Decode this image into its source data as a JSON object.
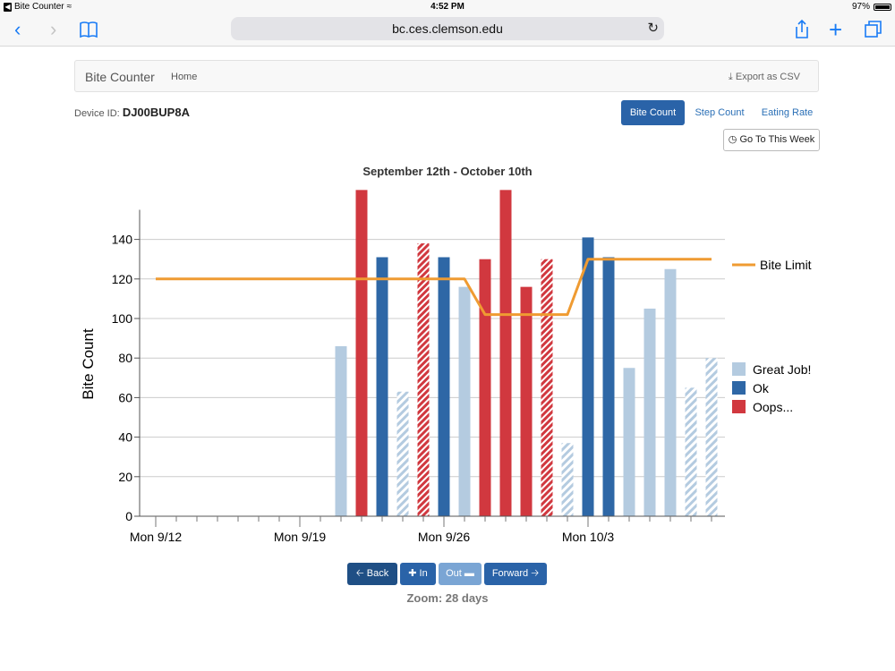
{
  "status_bar": {
    "app": "Bite Counter",
    "time": "4:52 PM",
    "battery": "97%"
  },
  "browser": {
    "url": "bc.ces.clemson.edu"
  },
  "navbar": {
    "brand": "Bite Counter",
    "home": "Home",
    "export": "Export as CSV"
  },
  "device": {
    "label": "Device ID:",
    "id": "DJ00BUP8A"
  },
  "tabs": [
    "Bite Count",
    "Step Count",
    "Eating Rate"
  ],
  "go_to_week": "Go To This Week",
  "controls": {
    "back": "Back",
    "in": "In",
    "out": "Out",
    "forward": "Forward",
    "zoom": "Zoom: 28 days"
  },
  "colors": {
    "great": "#b4cbe0",
    "ok": "#2e67a6",
    "oops": "#d1383f",
    "limit": "#ef9b32",
    "active_tab": "#2a63a8"
  },
  "chart_data": {
    "type": "bar",
    "title": "September 12th - October 10th",
    "xlabel": "",
    "ylabel": "Bite Count",
    "ylim": [
      0,
      160
    ],
    "yticks": [
      0,
      20,
      40,
      60,
      80,
      100,
      120,
      140
    ],
    "xtick_labels": [
      {
        "day": 0,
        "label": "Mon 9/12"
      },
      {
        "day": 7,
        "label": "Mon 9/19"
      },
      {
        "day": 14,
        "label": "Mon 9/26"
      },
      {
        "day": 21,
        "label": "Mon 10/3"
      }
    ],
    "grid": true,
    "legend_position": "right",
    "bars": [
      {
        "day": 9,
        "value": 86,
        "category": "Great Job!",
        "hatched": false
      },
      {
        "day": 10,
        "value": 165,
        "category": "Oops...",
        "hatched": false
      },
      {
        "day": 11,
        "value": 131,
        "category": "Ok",
        "hatched": false
      },
      {
        "day": 12,
        "value": 63,
        "category": "Great Job!",
        "hatched": true
      },
      {
        "day": 13,
        "value": 138,
        "category": "Oops...",
        "hatched": true
      },
      {
        "day": 14,
        "value": 131,
        "category": "Ok",
        "hatched": false
      },
      {
        "day": 15,
        "value": 116,
        "category": "Great Job!",
        "hatched": false
      },
      {
        "day": 16,
        "value": 130,
        "category": "Oops...",
        "hatched": false
      },
      {
        "day": 17,
        "value": 165,
        "category": "Oops...",
        "hatched": false
      },
      {
        "day": 18,
        "value": 116,
        "category": "Oops...",
        "hatched": false
      },
      {
        "day": 19,
        "value": 130,
        "category": "Oops...",
        "hatched": true
      },
      {
        "day": 20,
        "value": 37,
        "category": "Great Job!",
        "hatched": true
      },
      {
        "day": 21,
        "value": 141,
        "category": "Ok",
        "hatched": false
      },
      {
        "day": 22,
        "value": 131,
        "category": "Ok",
        "hatched": false
      },
      {
        "day": 23,
        "value": 75,
        "category": "Great Job!",
        "hatched": false
      },
      {
        "day": 24,
        "value": 105,
        "category": "Great Job!",
        "hatched": false
      },
      {
        "day": 25,
        "value": 125,
        "category": "Great Job!",
        "hatched": false
      },
      {
        "day": 26,
        "value": 65,
        "category": "Great Job!",
        "hatched": true
      },
      {
        "day": 27,
        "value": 80,
        "category": "Great Job!",
        "hatched": true
      }
    ],
    "bite_limit": {
      "name": "Bite Limit",
      "points": [
        {
          "day": 0,
          "value": 120
        },
        {
          "day": 15,
          "value": 120
        },
        {
          "day": 16,
          "value": 102
        },
        {
          "day": 20,
          "value": 102
        },
        {
          "day": 21,
          "value": 130
        },
        {
          "day": 27,
          "value": 130
        }
      ]
    },
    "legend": [
      {
        "name": "Great Job!",
        "color": "#b4cbe0"
      },
      {
        "name": "Ok",
        "color": "#2e67a6"
      },
      {
        "name": "Oops...",
        "color": "#d1383f"
      }
    ]
  }
}
